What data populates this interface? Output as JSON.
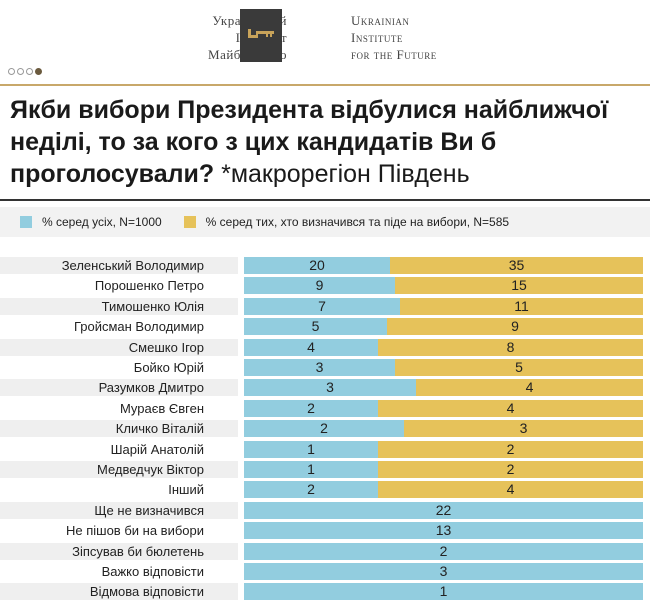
{
  "header": {
    "logo_ua": [
      "Український",
      "Інститут",
      "Майбутнього"
    ],
    "logo_en": [
      "Ukrainian",
      "Institute",
      "for the Future"
    ],
    "pager_dots": 4,
    "active_dot": 4
  },
  "title": {
    "main": "Якби вибори Президента відбулися найближчої неділі, то за кого з цих кандидатів Ви б проголосували?",
    "region": "*макрорегіон Південь"
  },
  "chart_data": {
    "type": "bar",
    "title": "Якби вибори Президента відбулися найближчої неділі, то за кого з цих кандидатів Ви б проголосували? *макрорегіон Південь",
    "legend_position": "top-left",
    "series": [
      {
        "name": "% серед усіх, N=1000",
        "color": "#92cddf",
        "values": [
          20,
          9,
          7,
          5,
          4,
          3,
          3,
          2,
          2,
          1,
          1,
          2,
          22,
          13,
          2,
          3,
          1
        ]
      },
      {
        "name": "% серед тих, хто визначився та піде на вибори, N=585",
        "color": "#e6c25a",
        "values": [
          35,
          15,
          11,
          9,
          8,
          5,
          4,
          4,
          3,
          2,
          2,
          4,
          null,
          null,
          null,
          null,
          null
        ]
      }
    ],
    "categories": [
      "Зеленський Володимир",
      "Порошенко Петро",
      "Тимошенко Юлія",
      "Гройсман Володимир",
      "Смешко Ігор",
      "Бойко Юрій",
      "Разумков Дмитро",
      "Мураєв Євген",
      "Кличко Віталій",
      "Шарій Анатолій",
      "Медведчук Віктор",
      "Інший",
      "Ще не визначився",
      "Не пішов би на вибори",
      "Зіпсував би бюлетень",
      "Важко відповісти",
      "Відмова відповісти"
    ]
  }
}
